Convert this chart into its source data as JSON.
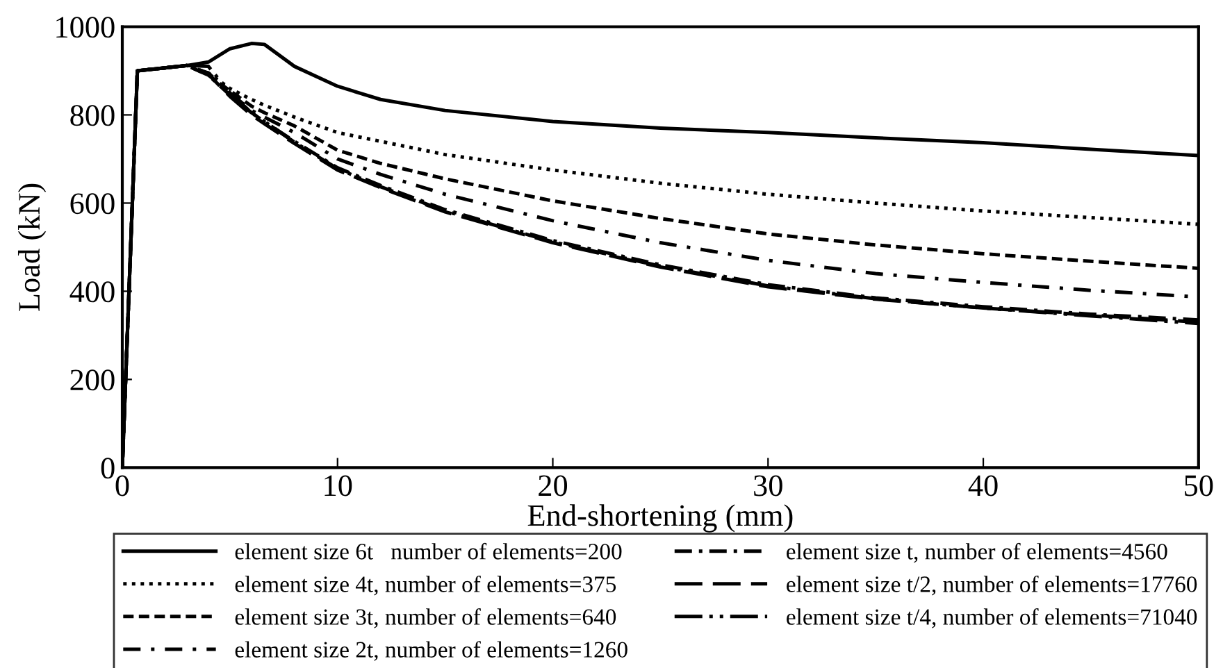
{
  "chart_data": {
    "type": "line",
    "xlabel": "End-shortening (mm)",
    "ylabel": "Load (kN)",
    "xlim": [
      0,
      50
    ],
    "ylim": [
      0,
      1000
    ],
    "xticks": [
      0,
      10,
      20,
      30,
      40,
      50
    ],
    "yticks": [
      0,
      200,
      400,
      600,
      800,
      1000
    ],
    "grid": false,
    "legend": "bottom",
    "marker": "none",
    "x": [
      0,
      0.7,
      3,
      4,
      5,
      6,
      6.6,
      8,
      10,
      12,
      15,
      20,
      25,
      30,
      35,
      40,
      45,
      50
    ],
    "series": [
      {
        "name": "element size 6t   number of elements=200",
        "color": "#000000",
        "line_style": "solid",
        "values": [
          0,
          900,
          912,
          920,
          950,
          962,
          960,
          910,
          865,
          835,
          810,
          785,
          770,
          760,
          748,
          737,
          722,
          708
        ]
      },
      {
        "name": "element size 4t, number of elements=375",
        "color": "#000000",
        "line_style": "dotted",
        "values": [
          0,
          900,
          912,
          895,
          860,
          835,
          822,
          795,
          760,
          740,
          710,
          675,
          645,
          620,
          600,
          582,
          567,
          552
        ]
      },
      {
        "name": "element size 3t, number of elements=640",
        "color": "#000000",
        "line_style": "dashed",
        "values": [
          0,
          900,
          912,
          890,
          855,
          820,
          805,
          775,
          720,
          690,
          655,
          605,
          565,
          530,
          505,
          485,
          468,
          452
        ]
      },
      {
        "name": "element size 2t, number of elements=1260",
        "color": "#000000",
        "line_style": "longdashdot",
        "values": [
          0,
          900,
          912,
          895,
          850,
          810,
          795,
          760,
          700,
          665,
          620,
          560,
          510,
          470,
          440,
          420,
          402,
          387
        ]
      },
      {
        "name": "element size t, number of elements=4560",
        "color": "#000000",
        "line_style": "dashdot",
        "values": [
          0,
          900,
          912,
          890,
          845,
          805,
          785,
          740,
          680,
          640,
          585,
          515,
          460,
          415,
          385,
          365,
          348,
          335
        ]
      },
      {
        "name": "element size t/2, number of elements=17760",
        "color": "#000000",
        "line_style": "longdash",
        "values": [
          0,
          900,
          912,
          892,
          842,
          800,
          780,
          735,
          675,
          635,
          580,
          510,
          455,
          410,
          382,
          362,
          346,
          330
        ]
      },
      {
        "name": "element size t/4, number of elements=71040",
        "color": "#000000",
        "line_style": "dashdotdot",
        "values": [
          0,
          900,
          912,
          910,
          850,
          805,
          785,
          738,
          678,
          637,
          582,
          512,
          457,
          412,
          383,
          362,
          344,
          327
        ]
      }
    ]
  }
}
